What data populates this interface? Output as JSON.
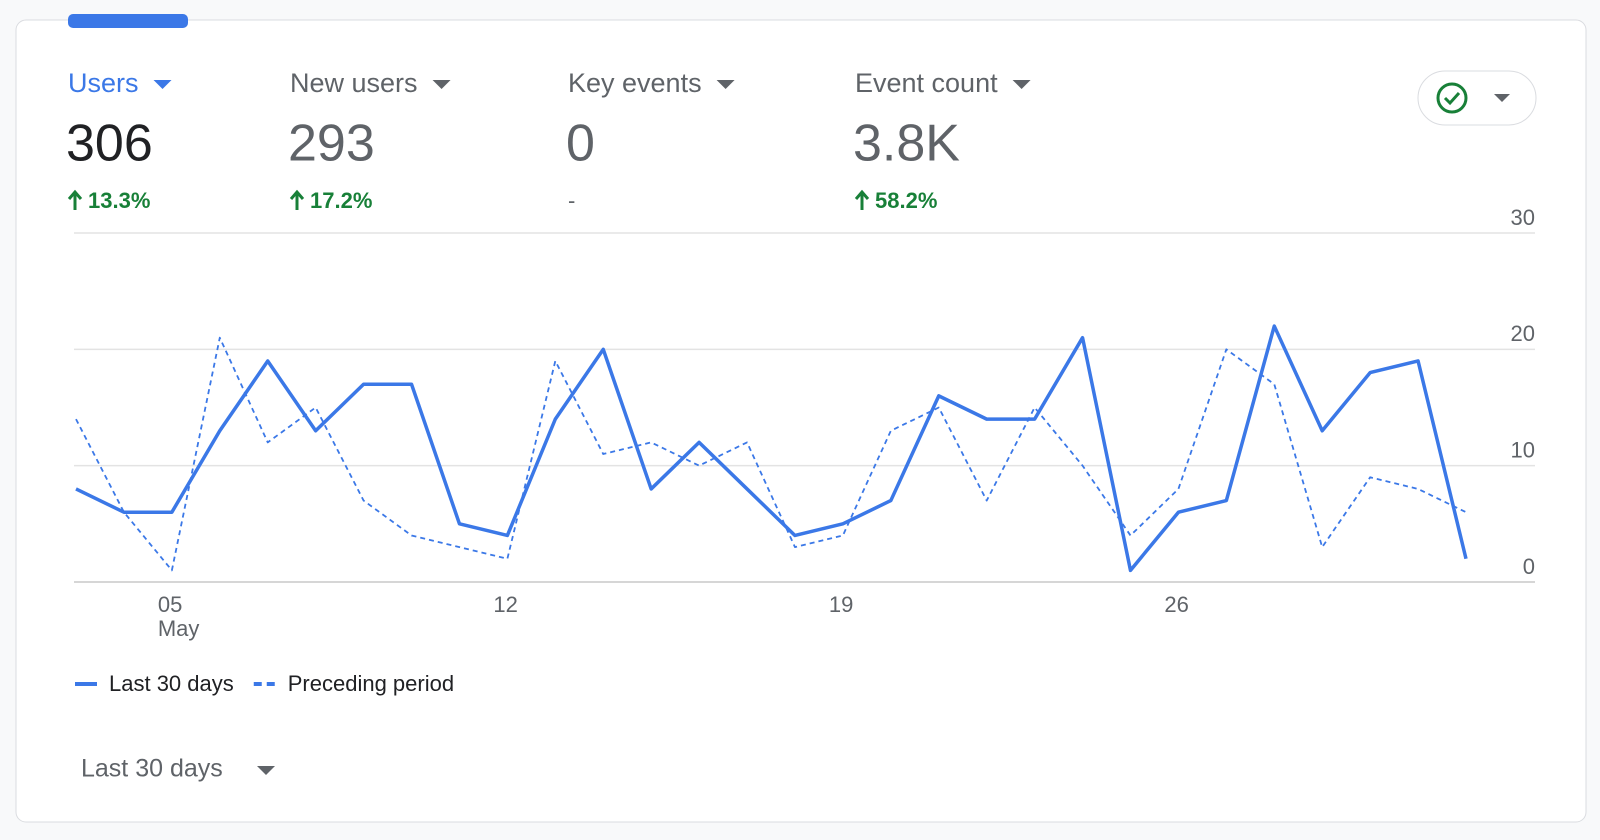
{
  "metrics": [
    {
      "label": "Users",
      "value": "306",
      "change": "13.3%"
    },
    {
      "label": "New users",
      "value": "293",
      "change": "17.2%"
    },
    {
      "label": "Key events",
      "value": "0",
      "change": "-"
    },
    {
      "label": "Event count",
      "value": "3.8K",
      "change": "58.2%"
    }
  ],
  "chart_data": {
    "type": "line",
    "categories": [
      null,
      null,
      "05",
      null,
      null,
      null,
      null,
      null,
      null,
      "12",
      null,
      null,
      null,
      null,
      null,
      null,
      "19",
      null,
      null,
      null,
      null,
      null,
      null,
      "26",
      null,
      null,
      null,
      null,
      null,
      null
    ],
    "month_label": "May",
    "series": [
      {
        "name": "Last 30 days",
        "color": "#3b78e7",
        "style": "solid",
        "values": [
          8,
          6,
          6,
          13,
          19,
          13,
          17,
          17,
          5,
          4,
          14,
          20,
          8,
          12,
          8,
          4,
          5,
          7,
          16,
          14,
          14,
          21,
          1,
          6,
          7,
          22,
          13,
          18,
          19,
          2
        ]
      },
      {
        "name": "Preceding period",
        "color": "#3b78e7",
        "style": "dashed",
        "values": [
          14,
          6,
          1,
          21,
          12,
          15,
          7,
          4,
          3,
          2,
          19,
          11,
          12,
          10,
          12,
          3,
          4,
          13,
          15,
          7,
          15,
          10,
          4,
          8,
          20,
          17,
          3,
          9,
          8,
          6
        ]
      }
    ],
    "ylim": [
      0,
      30
    ],
    "yticks": [
      0,
      10,
      20,
      30
    ],
    "grid": true
  },
  "date_range": "Last 30 days"
}
